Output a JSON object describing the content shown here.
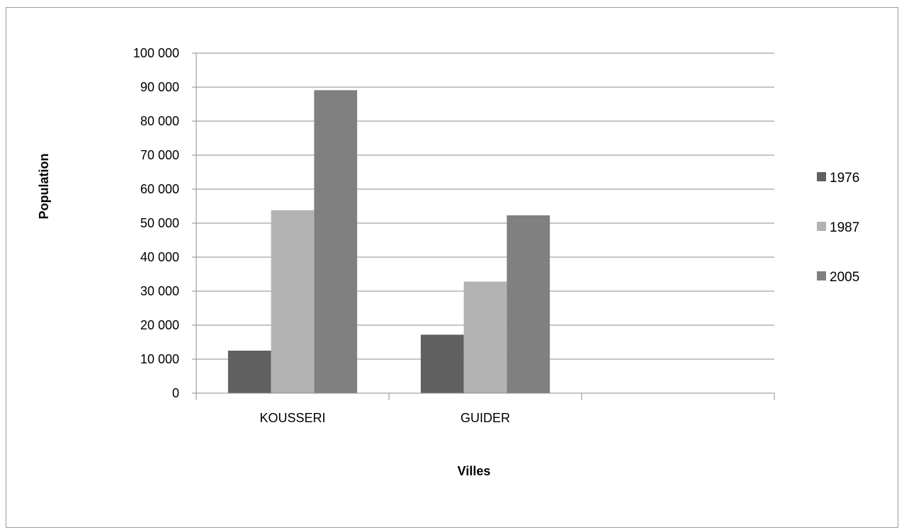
{
  "chart_data": {
    "type": "bar",
    "title": "",
    "xlabel": "Villes",
    "ylabel": "Population",
    "categories": [
      "KOUSSERI",
      "GUIDER",
      ""
    ],
    "series": [
      {
        "name": "1976",
        "color": "#606060",
        "values": [
          12500,
          17200,
          null
        ]
      },
      {
        "name": "1987",
        "color": "#b3b3b3",
        "values": [
          53800,
          32800,
          null
        ]
      },
      {
        "name": "2005",
        "color": "#808080",
        "values": [
          89100,
          52300,
          null
        ]
      }
    ],
    "ylim": [
      0,
      100000
    ],
    "yticks": [
      0,
      10000,
      20000,
      30000,
      40000,
      50000,
      60000,
      70000,
      80000,
      90000,
      100000
    ],
    "ytick_labels": [
      "0",
      "10 000",
      "20 000",
      "30 000",
      "40 000",
      "50 000",
      "60 000",
      "70 000",
      "80 000",
      "90 000",
      "100 000"
    ],
    "grid": true,
    "legend_position": "right"
  }
}
